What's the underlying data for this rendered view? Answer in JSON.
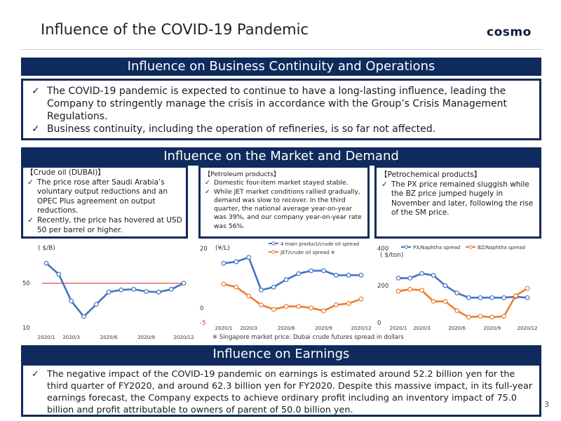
{
  "header": {
    "title": "Influence of the COVID-19 Pandemic",
    "logo": "cosmo"
  },
  "business": {
    "banner": "Influence on Business Continuity and Operations",
    "bullets": [
      "The COVID-19 pandemic is expected to continue to have a long-lasting influence, leading the Company to stringently manage the crisis in accordance with the Group’s Crisis Management Regulations.",
      "Business continuity, including the operation of refineries, is so far not affected."
    ]
  },
  "market": {
    "banner": "Influence on the Market and Demand",
    "crude": {
      "heading": "【Crude oil (DUBAI)】",
      "bullets": [
        "The price rose after Saudi Arabia’s voluntary output reductions and an OPEC Plus agreement on output reductions.",
        "Recently, the price has hovered at USD 50 per barrel or higher."
      ]
    },
    "petroleum": {
      "heading": "【Petroleum products】",
      "bullets": [
        "Domestic four-item market stayed stable.",
        "While JET market conditions rallied gradually, demand was slow to recover. In the third quarter, the national average year-on-year was 39%, and our company year-on-year rate was 56%."
      ]
    },
    "petrochemical": {
      "heading": "【Petrochemical products】",
      "bullets": [
        "The PX price remained sluggish while the BZ price jumped hugely in November and later, following the rise of the SM price."
      ]
    },
    "footnote": "※ Singapore market price: Dubai crude futures spread in dollars"
  },
  "earnings": {
    "banner": "Influence on Earnings",
    "bullets": [
      "The negative impact of the COVID-19 pandemic on earnings is estimated around 52.2 billion yen for the third quarter of FY2020, and around 62.3 billion yen for FY2020. Despite this massive impact, in its full-year earnings forecast, the Company expects to achieve ordinary profit including an inventory impact of 75.0 billion and profit attributable to owners of parent of 50.0 billion yen."
    ]
  },
  "page_number": "3",
  "colors": {
    "navy": "#0f2a5c",
    "blue_series": "#4472c4",
    "orange_series": "#ed7d31",
    "ref_line": "#d93025"
  },
  "chart_data": [
    {
      "type": "line",
      "unit_label": "( $/B)",
      "x": [
        "2020/1",
        "2020/2",
        "2020/3",
        "2020/4",
        "2020/5",
        "2020/6",
        "2020/7",
        "2020/8",
        "2020/9",
        "2020/10",
        "2020/11",
        "2020/12"
      ],
      "x_tick_labels": [
        "2020/1",
        "2020/3",
        "2020/6",
        "2020/9",
        "2020/12"
      ],
      "ylim": [
        10,
        75
      ],
      "y_tick_labels": [
        "50",
        "10"
      ],
      "y_ticks": [
        50,
        10
      ],
      "reference_line": 50,
      "series": [
        {
          "values": [
            68,
            58,
            34,
            20,
            31,
            42,
            44,
            44.5,
            42.5,
            42,
            44.5,
            50
          ]
        }
      ]
    },
    {
      "type": "line",
      "unit_label": "(¥/L)",
      "x": [
        "2020/1",
        "2020/2",
        "2020/3",
        "2020/4",
        "2020/5",
        "2020/6",
        "2020/7",
        "2020/8",
        "2020/9",
        "2020/10",
        "2020/11",
        "2020/12"
      ],
      "x_tick_labels": [
        "2020/1",
        "2020/3",
        "2020/6",
        "2020/9",
        "2020/12"
      ],
      "ylim": [
        -5,
        20
      ],
      "y_tick_labels": [
        "20",
        "0",
        "-5"
      ],
      "y_ticks": [
        20,
        0,
        -5
      ],
      "series": [
        {
          "name": "4 main product/crude oil spread",
          "values": [
            15,
            15.5,
            17,
            6,
            7,
            9.5,
            11.5,
            12.5,
            12.5,
            11,
            11,
            11
          ]
        },
        {
          "name": "JET/crude oil spread ※",
          "values": [
            8,
            7,
            4,
            1,
            -0.5,
            0.5,
            0.5,
            0,
            -1,
            1,
            1.5,
            3
          ]
        }
      ]
    },
    {
      "type": "line",
      "unit_label": "( $/ton)",
      "x": [
        "2020/1",
        "2020/2",
        "2020/3",
        "2020/4",
        "2020/5",
        "2020/6",
        "2020/7",
        "2020/8",
        "2020/9",
        "2020/10",
        "2020/11",
        "2020/12"
      ],
      "x_tick_labels": [
        "2020/1",
        "2020/3",
        "2020/6",
        "2020/9",
        "2020/12"
      ],
      "ylim": [
        0,
        400
      ],
      "y_tick_labels": [
        "400",
        "200",
        "0"
      ],
      "y_ticks": [
        400,
        200,
        0
      ],
      "series": [
        {
          "name": "PX/Naphtha spread",
          "values": [
            240,
            240,
            265,
            255,
            200,
            160,
            135,
            135,
            135,
            135,
            140,
            135
          ]
        },
        {
          "name": "BZ/Naphtha spread",
          "values": [
            170,
            180,
            175,
            115,
            115,
            65,
            30,
            35,
            30,
            35,
            145,
            185
          ]
        }
      ]
    }
  ]
}
